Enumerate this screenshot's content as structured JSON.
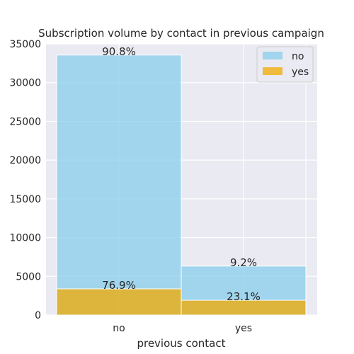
{
  "chart_data": {
    "type": "bar",
    "title": "Subscription volume by contact in previous campaign",
    "xlabel": "previous contact",
    "ylabel": "",
    "categories": [
      "no",
      "yes"
    ],
    "ylim": [
      0,
      35000
    ],
    "yticks": [
      0,
      5000,
      10000,
      15000,
      20000,
      25000,
      30000,
      35000
    ],
    "grid": true,
    "legend_position": "top-right",
    "series": [
      {
        "name": "no",
        "color": "#87ceeb",
        "values": [
          33560,
          6320
        ],
        "labels": [
          "90.8%",
          "9.2%"
        ]
      },
      {
        "name": "yes",
        "color": "#f2a900",
        "values": [
          3380,
          1910
        ],
        "labels": [
          "76.9%",
          "23.1%"
        ]
      }
    ]
  }
}
